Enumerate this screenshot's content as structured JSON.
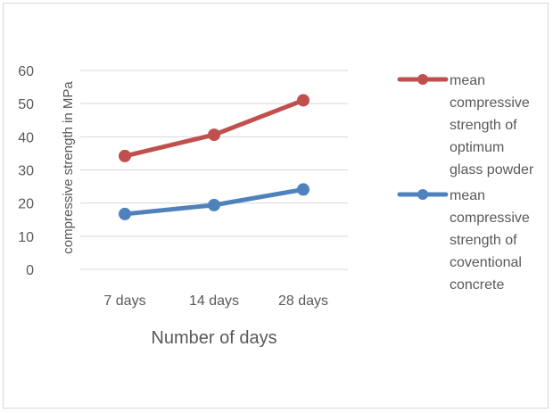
{
  "chart_data": {
    "type": "line",
    "categories": [
      "7 days",
      "14 days",
      "28 days"
    ],
    "series": [
      {
        "name": "mean compressive strength of optimum glass powder",
        "legend_lines": [
          "mean",
          "compressive",
          "strength of",
          "optimum",
          "glass powder"
        ],
        "values": [
          34.2,
          40.6,
          51.0
        ],
        "color": "#c0504d"
      },
      {
        "name": "mean compressive strength of coventional concrete",
        "legend_lines": [
          "mean",
          "compressive",
          "strength of",
          "coventional",
          "concrete"
        ],
        "values": [
          16.7,
          19.4,
          24.1
        ],
        "color": "#4f81bd"
      }
    ],
    "xlabel": "Number of days",
    "ylabel": "compressive  strength in MPa",
    "ylim": [
      0,
      60
    ],
    "yticks": [
      "0",
      "10",
      "20",
      "30",
      "40",
      "50",
      "60"
    ],
    "grid": true,
    "legend_position": "right",
    "colors": {
      "grid": "#d9d9d9",
      "text": "#595959",
      "border": "#d9d9d9"
    }
  }
}
